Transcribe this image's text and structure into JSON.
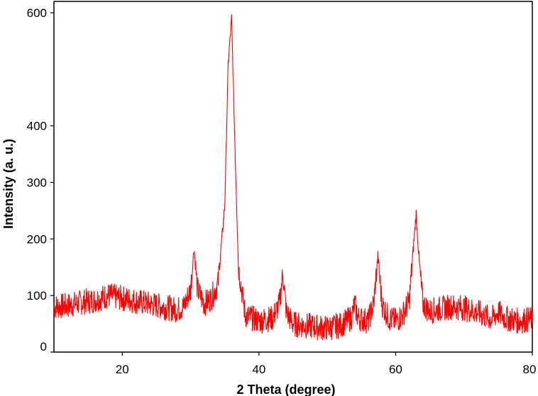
{
  "chart_data": {
    "type": "line",
    "xlabel": "2 Theta (degree)",
    "ylabel": "Intensity (a. u.)",
    "xlim": [
      10,
      80
    ],
    "ylim": [
      0,
      620
    ],
    "x_ticks": [
      20,
      40,
      60,
      80
    ],
    "y_ticks": [
      0,
      100,
      200,
      300,
      400,
      600
    ],
    "y_tick_labels": [
      "0",
      "100",
      "200",
      "300",
      "400",
      "600"
    ],
    "x_tick_labels": [
      "20",
      "40",
      "60",
      "80"
    ],
    "line_color": "#ff0000",
    "grid": false,
    "legend": "none",
    "series": [
      {
        "x": [
          10,
          12,
          14,
          16,
          18,
          20,
          22,
          24,
          26,
          28,
          29,
          30,
          30.5,
          31,
          32,
          33,
          34,
          35,
          35.5,
          36,
          36.5,
          37,
          38,
          40,
          42,
          43,
          43.5,
          44,
          45,
          46,
          48,
          50,
          52,
          53.5,
          54,
          54.5,
          56,
          56.8,
          57.4,
          58,
          59,
          60,
          61,
          62,
          62.5,
          63,
          63.5,
          64,
          65,
          66,
          68,
          70,
          72,
          74,
          75,
          76,
          78,
          80
        ],
        "y": [
          80,
          82,
          88,
          92,
          100,
          95,
          90,
          85,
          80,
          75,
          80,
          110,
          185,
          110,
          85,
          95,
          120,
          260,
          510,
          590,
          360,
          150,
          65,
          55,
          60,
          85,
          140,
          70,
          50,
          48,
          45,
          42,
          48,
          60,
          85,
          60,
          55,
          85,
          170,
          85,
          60,
          55,
          65,
          90,
          170,
          245,
          150,
          85,
          72,
          75,
          80,
          78,
          70,
          58,
          70,
          60,
          55,
          58
        ]
      }
    ]
  }
}
